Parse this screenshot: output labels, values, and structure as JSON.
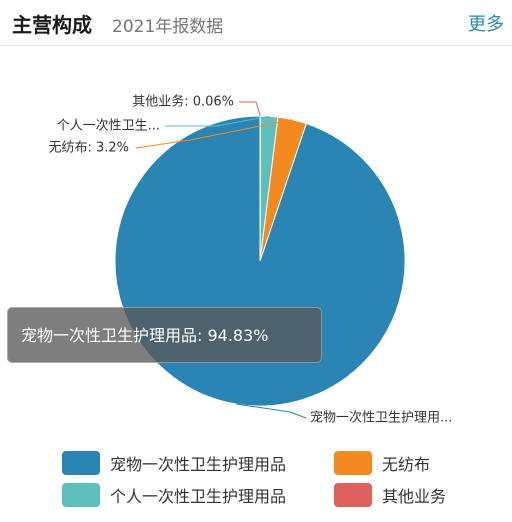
{
  "header": {
    "title": "主营构成",
    "subtitle": "2021年报数据",
    "more_label": "更多"
  },
  "colors": {
    "pet_hygiene": "#2a84b4",
    "nonwoven": "#f28a1f",
    "personal_hygiene": "#5ebfbe",
    "other": "#e0605d"
  },
  "chart_data": {
    "type": "pie",
    "title": "",
    "slices": [
      {
        "name": "宠物一次性卫生护理用品",
        "value": 94.83,
        "callout": "宠物一次性卫生护理用...",
        "color_key": "pet_hygiene"
      },
      {
        "name": "无纺布",
        "value": 3.2,
        "callout": "无纺布: 3.2%",
        "color_key": "nonwoven"
      },
      {
        "name": "个人一次性卫生护理用品",
        "value": 1.91,
        "callout": "个人一次性卫生...",
        "color_key": "personal_hygiene"
      },
      {
        "name": "其他业务",
        "value": 0.06,
        "callout": "其他业务: 0.06%",
        "color_key": "other"
      }
    ],
    "legend_position": "bottom",
    "tooltip": "宠物一次性卫生护理用品: 94.83%"
  },
  "legend": [
    {
      "label": "宠物一次性卫生护理用品",
      "color_key": "pet_hygiene"
    },
    {
      "label": "无纺布",
      "color_key": "nonwoven"
    },
    {
      "label": "个人一次性卫生护理用品",
      "color_key": "personal_hygiene"
    },
    {
      "label": "其他业务",
      "color_key": "other"
    }
  ]
}
